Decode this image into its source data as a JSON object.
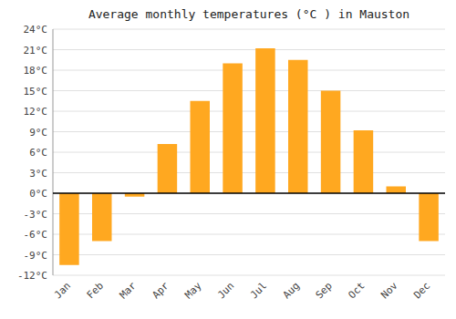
{
  "chart_data": {
    "type": "bar",
    "title": "Average monthly temperatures (°C ) in Mauston",
    "categories": [
      "Jan",
      "Feb",
      "Mar",
      "Apr",
      "May",
      "Jun",
      "Jul",
      "Aug",
      "Sep",
      "Oct",
      "Nov",
      "Dec"
    ],
    "values": [
      -10.5,
      -7.0,
      -0.5,
      7.2,
      13.5,
      19.0,
      21.2,
      19.5,
      15.0,
      9.2,
      1.0,
      -7.0
    ],
    "color": "#FFA820",
    "ylim": [
      -12,
      24
    ],
    "yticks": [
      {
        "value": -12,
        "label": "-12°C"
      },
      {
        "value": -9,
        "label": "-9°C"
      },
      {
        "value": -6,
        "label": "-6°C"
      },
      {
        "value": -3,
        "label": "-3°C"
      },
      {
        "value": 0,
        "label": "0°C"
      },
      {
        "value": 3,
        "label": "3°C"
      },
      {
        "value": 6,
        "label": "6°C"
      },
      {
        "value": 9,
        "label": "9°C"
      },
      {
        "value": 12,
        "label": "12°C"
      },
      {
        "value": 15,
        "label": "15°C"
      },
      {
        "value": 18,
        "label": "18°C"
      },
      {
        "value": 21,
        "label": "21°C"
      },
      {
        "value": 24,
        "label": "24°C"
      }
    ],
    "grid": true
  }
}
